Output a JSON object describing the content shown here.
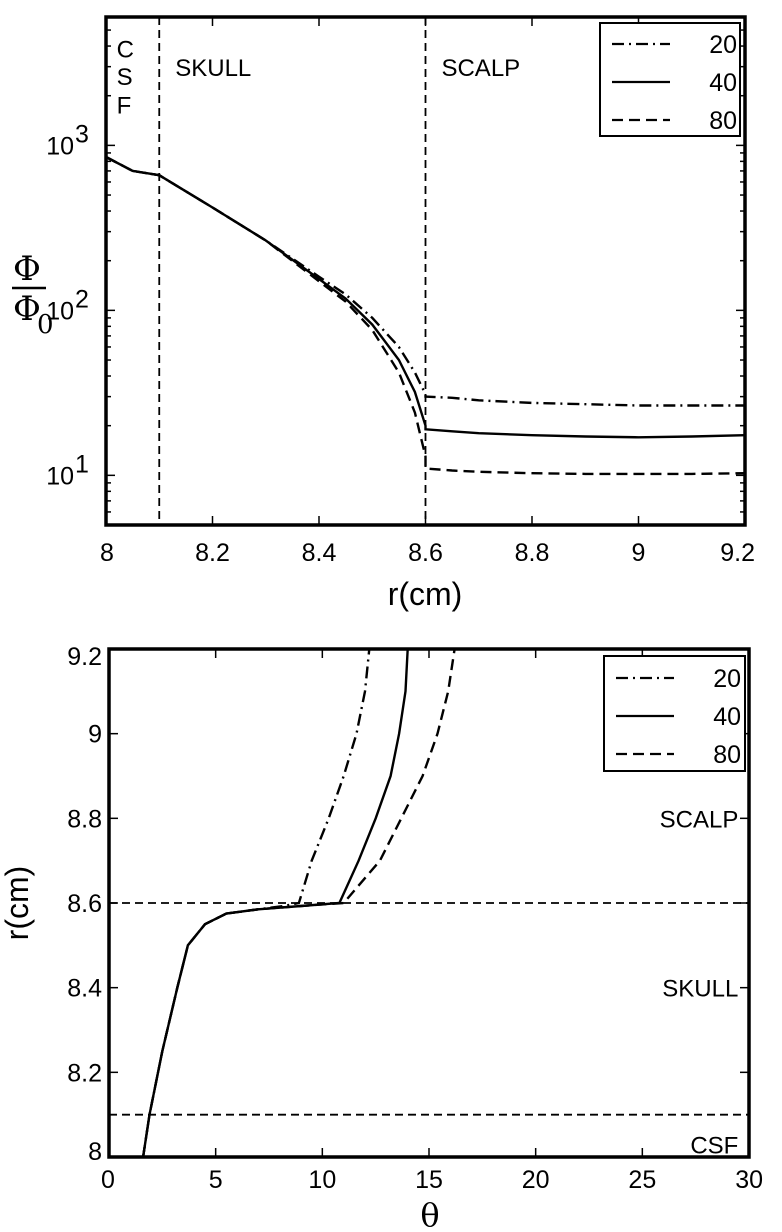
{
  "chart_data": [
    {
      "type": "line",
      "title": "",
      "xlabel": "r(cm)",
      "ylabel_num": "Φ",
      "ylabel_den": "Φ",
      "ylabel_sub": "0",
      "xlim": [
        8,
        9.2
      ],
      "ylim": [
        5,
        6000
      ],
      "yscale": "log",
      "xticks": [
        "8",
        "8.2",
        "8.4",
        "8.6",
        "8.8",
        "9",
        "9.2"
      ],
      "ytick_base": "10",
      "yticks": [
        {
          "value": 10,
          "exp": "1"
        },
        {
          "value": 100,
          "exp": "2"
        },
        {
          "value": 1000,
          "exp": "3"
        }
      ],
      "vlines": [
        8.1,
        8.6
      ],
      "regions": [
        {
          "label": "C",
          "x": 8.02,
          "y": 3800
        },
        {
          "label": "S",
          "x": 8.02,
          "y": 2600
        },
        {
          "label": "F",
          "x": 8.02,
          "y": 1750
        },
        {
          "label": "SKULL",
          "x": 8.13,
          "y": 2950
        },
        {
          "label": "SCALP",
          "x": 8.63,
          "y": 2950
        }
      ],
      "legend": "top-right",
      "series": [
        {
          "name": "20",
          "dash": "dashdot",
          "x": [
            8.0,
            8.05,
            8.1,
            8.2,
            8.3,
            8.4,
            8.45,
            8.5,
            8.55,
            8.58,
            8.6,
            8.6,
            8.65,
            8.7,
            8.8,
            8.9,
            9.0,
            9.1,
            9.2
          ],
          "y": [
            850,
            700,
            660,
            420,
            265,
            160,
            125,
            90,
            60,
            42,
            31,
            30,
            29.5,
            28.5,
            27.5,
            27,
            26.5,
            26.5,
            26.5
          ]
        },
        {
          "name": "40",
          "dash": "solid",
          "x": [
            8.0,
            8.05,
            8.1,
            8.2,
            8.3,
            8.4,
            8.45,
            8.5,
            8.55,
            8.58,
            8.6,
            8.6,
            8.65,
            8.7,
            8.8,
            8.9,
            9.0,
            9.1,
            9.2
          ],
          "y": [
            850,
            700,
            660,
            420,
            265,
            155,
            118,
            82,
            50,
            32,
            20,
            19,
            18.5,
            18,
            17.5,
            17.2,
            17,
            17.2,
            17.5
          ]
        },
        {
          "name": "80",
          "dash": "dashed",
          "x": [
            8.0,
            8.05,
            8.1,
            8.2,
            8.3,
            8.4,
            8.45,
            8.5,
            8.55,
            8.58,
            8.6,
            8.6,
            8.65,
            8.7,
            8.8,
            8.9,
            9.0,
            9.1,
            9.2
          ],
          "y": [
            850,
            700,
            660,
            420,
            265,
            150,
            113,
            76,
            42,
            24,
            13,
            11,
            10.7,
            10.5,
            10.3,
            10.2,
            10.2,
            10.2,
            10.3
          ]
        }
      ]
    },
    {
      "type": "line",
      "title": "",
      "xlabel": "θ",
      "ylabel": "r(cm)",
      "xlim": [
        0,
        30
      ],
      "ylim": [
        8,
        9.2
      ],
      "xticks": [
        "0",
        "5",
        "10",
        "15",
        "20",
        "25",
        "30"
      ],
      "yticks": [
        "8",
        "8.2",
        "8.4",
        "8.6",
        "8.8",
        "9",
        "9.2"
      ],
      "hlines": [
        8.1,
        8.6
      ],
      "regions": [
        {
          "label": "SCALP",
          "x": 29.5,
          "y": 8.8
        },
        {
          "label": "SKULL",
          "x": 29.5,
          "y": 8.4
        },
        {
          "label": "CSF",
          "x": 29.5,
          "y": 8.03
        }
      ],
      "legend": "top-right",
      "series": [
        {
          "name": "20",
          "dash": "dashdot",
          "theta": [
            1.6,
            1.9,
            2.5,
            3.2,
            3.7,
            4.5,
            5.5,
            7.0,
            8.2,
            8.9,
            9.5,
            10.3,
            11.0,
            11.6,
            12.0,
            12.2
          ],
          "r": [
            8.0,
            8.1,
            8.25,
            8.4,
            8.5,
            8.55,
            8.575,
            8.585,
            8.593,
            8.6,
            8.7,
            8.8,
            8.9,
            9.0,
            9.1,
            9.2
          ]
        },
        {
          "name": "40",
          "dash": "solid",
          "theta": [
            1.6,
            1.9,
            2.5,
            3.2,
            3.7,
            4.5,
            5.5,
            7.0,
            9.0,
            10.8,
            11.7,
            12.5,
            13.2,
            13.6,
            13.9,
            14.0
          ],
          "r": [
            8.0,
            8.1,
            8.25,
            8.4,
            8.5,
            8.55,
            8.575,
            8.585,
            8.593,
            8.6,
            8.7,
            8.8,
            8.9,
            9.0,
            9.1,
            9.2
          ]
        },
        {
          "name": "80",
          "dash": "dashed",
          "theta": [
            1.6,
            1.9,
            2.5,
            3.2,
            3.7,
            4.5,
            5.5,
            7.0,
            9.0,
            11.0,
            12.7,
            13.7,
            14.7,
            15.4,
            15.9,
            16.2
          ],
          "r": [
            8.0,
            8.1,
            8.25,
            8.4,
            8.5,
            8.55,
            8.575,
            8.585,
            8.593,
            8.6,
            8.7,
            8.8,
            8.9,
            9.0,
            9.1,
            9.2
          ]
        }
      ]
    }
  ]
}
